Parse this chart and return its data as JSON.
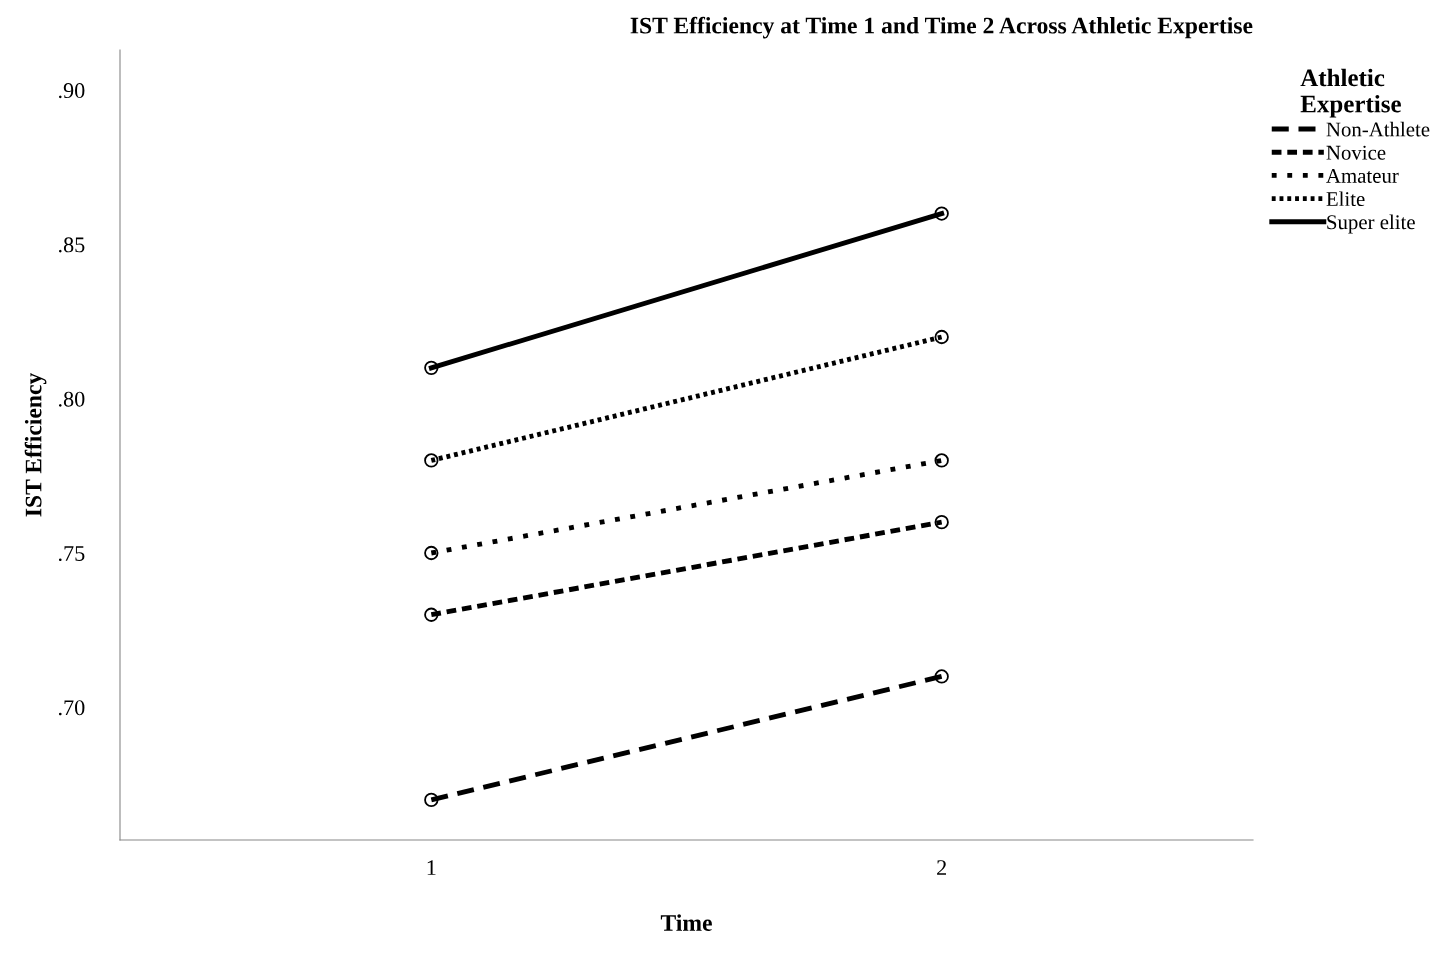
{
  "chart_data": {
    "type": "line",
    "title": "IST Efficiency at Time 1 and Time 2 Across Athletic Expertise",
    "xlabel": "Time",
    "ylabel": "IST Efficiency",
    "legend_title": "Athletic\nExpertise",
    "categories": [
      "1",
      "2"
    ],
    "series": [
      {
        "name": "Non-Athlete",
        "color": "#000000",
        "line_style": "dashed",
        "values": [
          0.67,
          0.71
        ]
      },
      {
        "name": "Novice",
        "color": "#000000",
        "line_style": "dashed",
        "values": [
          0.73,
          0.76
        ]
      },
      {
        "name": "Amateur",
        "color": "#000000",
        "line_style": "dotted",
        "values": [
          0.75,
          0.78
        ]
      },
      {
        "name": "Elite",
        "color": "#000000",
        "line_style": "dotted",
        "values": [
          0.78,
          0.82
        ]
      },
      {
        "name": "Super elite",
        "color": "#000000",
        "line_style": "solid",
        "values": [
          0.81,
          0.86
        ]
      }
    ],
    "ylim": [
      0.657,
      0.913
    ],
    "yticks": [
      {
        "value": 0.7,
        "label": ".70"
      },
      {
        "value": 0.75,
        "label": ".75"
      },
      {
        "value": 0.8,
        "label": ".80"
      },
      {
        "value": 0.85,
        "label": ".85"
      },
      {
        "value": 0.9,
        "label": ".90"
      }
    ],
    "marker": "circle",
    "grid": false,
    "legend": "top right"
  }
}
